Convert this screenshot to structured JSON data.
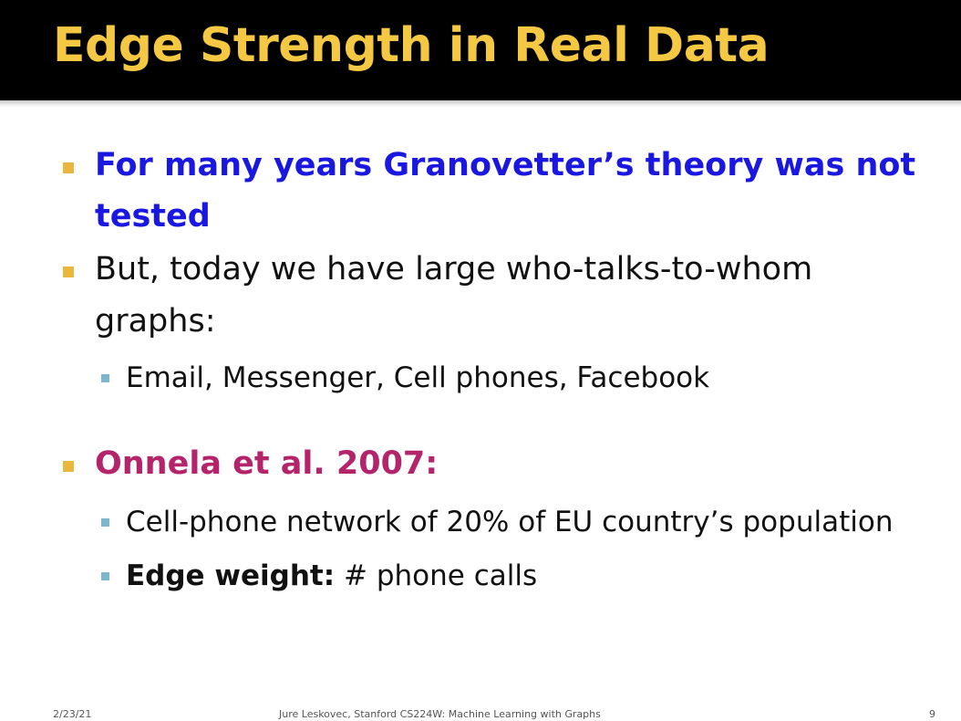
{
  "slide": {
    "title": "Edge Strength in Real Data",
    "bullets": [
      {
        "line1": "For many years Granovetter’s theory was not",
        "line2": "tested",
        "color": "#1a18e0"
      },
      {
        "line1": "But, today we have large who-talks-to-whom",
        "line2": "graphs:",
        "sub": [
          "Email, Messenger, Cell phones, Facebook"
        ]
      },
      {
        "line1": "Onnela et al. 2007:",
        "color": "#b3246a",
        "sub": [
          "Cell-phone network of 20% of EU country’s population",
          {
            "bold": "Edge weight:",
            "rest": " # phone calls"
          }
        ]
      }
    ]
  },
  "footer": {
    "date": "2/23/21",
    "course": "Jure Leskovec, Stanford CS224W: Machine Learning with Graphs",
    "page": "9"
  },
  "colors": {
    "title_bar": "#000000",
    "title_text": "#f4c842",
    "bullet_l1": "#e9b73c",
    "bullet_l2": "#7fb6cf",
    "emphasis_blue": "#1a18e0",
    "emphasis_magenta": "#b3246a"
  }
}
